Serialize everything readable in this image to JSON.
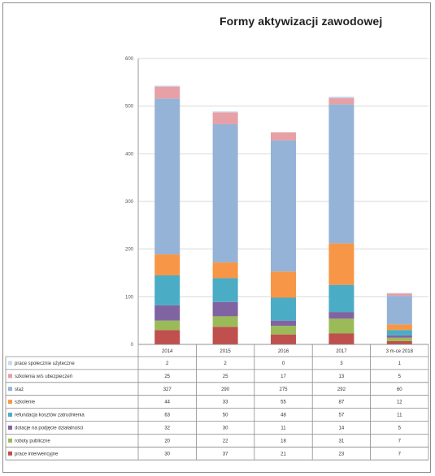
{
  "chart_data": {
    "type": "bar",
    "stacked": true,
    "title": "Formy aktywizacji zawodowej",
    "categories": [
      "2014",
      "2015",
      "2016",
      "2017",
      "3 m-ce 2018"
    ],
    "ylim": [
      0,
      600
    ],
    "yticks": [
      "0",
      "100",
      "200",
      "300",
      "400",
      "500",
      "600"
    ],
    "grid": true,
    "legend": "data table below chart",
    "series": [
      {
        "name": "prace interwencyjne",
        "color": "#c0504d",
        "values": [
          30,
          37,
          21,
          23,
          7
        ]
      },
      {
        "name": "roboty publiczne",
        "color": "#9bbb59",
        "values": [
          20,
          22,
          18,
          31,
          7
        ]
      },
      {
        "name": "dotacje na podjęcie działalności",
        "color": "#8064a2",
        "values": [
          32,
          30,
          11,
          14,
          5
        ]
      },
      {
        "name": "refundacja kosztów zatrudnienia",
        "color": "#4bacc6",
        "values": [
          63,
          50,
          48,
          57,
          11
        ]
      },
      {
        "name": "szkolenie",
        "color": "#f79646",
        "values": [
          44,
          33,
          55,
          87,
          12
        ]
      },
      {
        "name": "staż",
        "color": "#95b3d7",
        "values": [
          327,
          290,
          275,
          292,
          60
        ]
      },
      {
        "name": "szkolenia w/s ubezpieczeń",
        "color": "#e6a0a6",
        "values": [
          25,
          25,
          17,
          13,
          5
        ]
      },
      {
        "name": "prace społecznie użyteczne",
        "color": "#c6d9f1",
        "values": [
          2,
          2,
          0,
          3,
          1
        ]
      }
    ]
  }
}
